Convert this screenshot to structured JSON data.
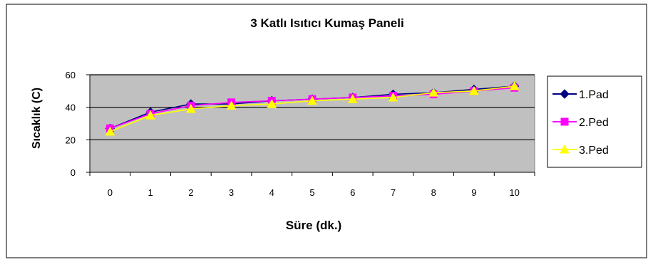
{
  "chart_data": {
    "type": "line",
    "title": "3 Katlı Isıtıcı Kumaş Paneli",
    "xlabel": "Süre (dk.)",
    "ylabel": "Sıcaklık (C)",
    "x": [
      0,
      1,
      2,
      3,
      4,
      5,
      6,
      7,
      8,
      9,
      10
    ],
    "ylim": [
      0,
      60
    ],
    "yticks": [
      0,
      20,
      40,
      60
    ],
    "grid": true,
    "legend": "right",
    "colors": {
      "plot_background": "#c0c0c0",
      "border": "#000000",
      "series_1": "#000080",
      "series_2": "#ff00ff",
      "series_3": "#ffff00"
    },
    "series": [
      {
        "name": "1.Pad",
        "marker": "diamond",
        "color": "#000080",
        "values": [
          27,
          37,
          42,
          42,
          44,
          45,
          46,
          48,
          49,
          51,
          53
        ]
      },
      {
        "name": "2.Ped",
        "marker": "square",
        "color": "#ff00ff",
        "values": [
          27,
          36,
          41,
          43,
          44,
          45,
          46,
          47,
          48,
          50,
          52
        ]
      },
      {
        "name": "3.Ped",
        "marker": "triangle",
        "color": "#ffff00",
        "values": [
          25,
          35,
          39,
          41,
          42,
          44,
          45,
          46,
          49,
          50,
          53
        ]
      }
    ]
  }
}
